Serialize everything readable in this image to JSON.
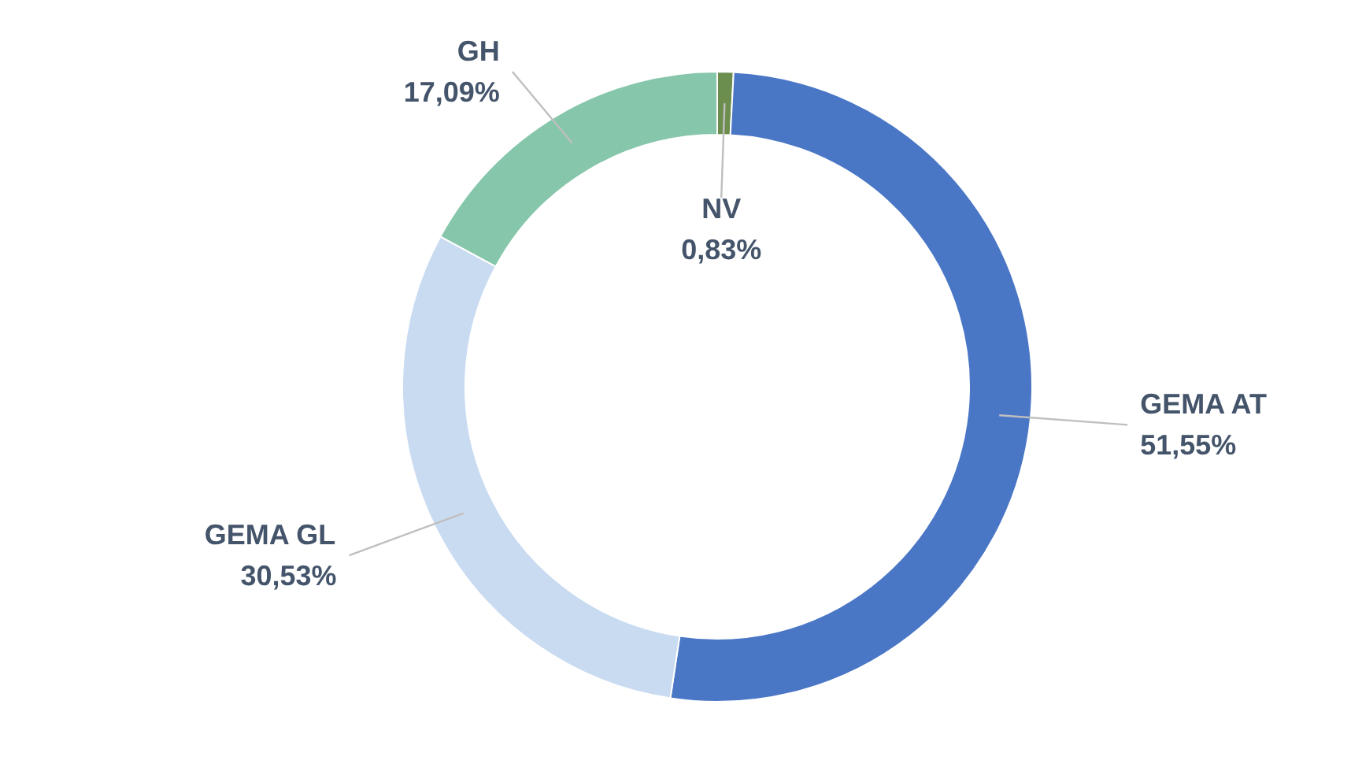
{
  "chart_data": {
    "type": "donut",
    "categories": [
      "NV",
      "GEMA AT",
      "GEMA GL",
      "GH"
    ],
    "values": [
      0.83,
      51.55,
      30.53,
      17.09
    ],
    "colors": [
      "#6b8e4e",
      "#4a76c6",
      "#c9dbf1",
      "#86c6aa"
    ],
    "value_labels": [
      "0,83%",
      "51,55%",
      "30,53%",
      "17,09%"
    ]
  }
}
